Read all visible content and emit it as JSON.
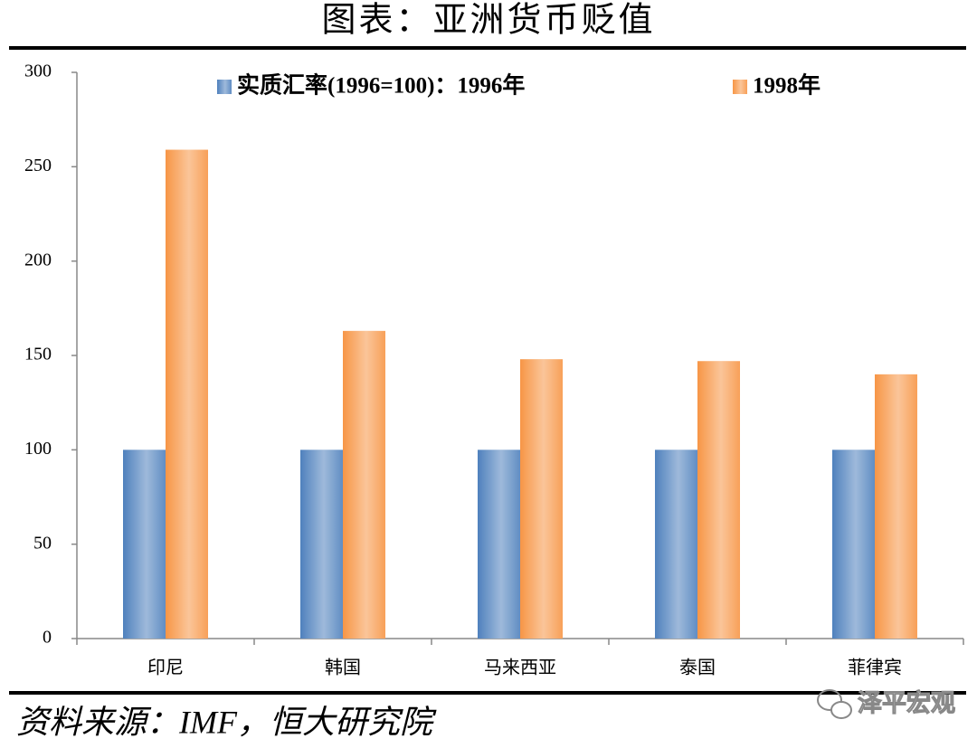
{
  "chart_data": {
    "type": "bar",
    "title": "图表：亚洲货币贬值",
    "categories": [
      "印尼",
      "韩国",
      "马来西亚",
      "泰国",
      "菲律宾"
    ],
    "series": [
      {
        "name": "实质汇率(1996=100)：1996年",
        "color": "#4f81bd",
        "values": [
          100,
          100,
          100,
          100,
          100
        ]
      },
      {
        "name": "1998年",
        "color": "#f79646",
        "values": [
          259,
          163,
          148,
          147,
          140
        ]
      }
    ],
    "ylim": [
      0,
      300
    ],
    "yticks": [
      0,
      50,
      100,
      150,
      200,
      250,
      300
    ],
    "grid": false,
    "legend": "top",
    "source": "资料来源：IMF，恒大研究院",
    "watermark": "泽平宏观"
  }
}
